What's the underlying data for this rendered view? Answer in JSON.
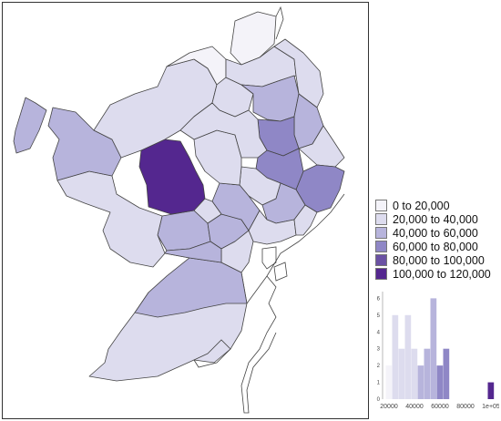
{
  "legend": {
    "items": [
      {
        "label": "0 to 20,000",
        "color": "#f4f3f9"
      },
      {
        "label": "20,000 to 40,000",
        "color": "#dddcee"
      },
      {
        "label": "40,000 to 60,000",
        "color": "#b7b4dc"
      },
      {
        "label": "60,000 to 80,000",
        "color": "#8f87c6"
      },
      {
        "label": "80,000 to 100,000",
        "color": "#6a51a3"
      },
      {
        "label": "100,000 to 120,000",
        "color": "#54278f"
      }
    ]
  },
  "histogram": {
    "x_tick_labels": [
      "20000",
      "40000",
      "60000",
      "80000",
      "1e+05"
    ],
    "y_tick_labels": [
      "0",
      "1",
      "2",
      "3",
      "4",
      "5",
      "6"
    ],
    "bins": [
      {
        "x": 20000,
        "count": 2,
        "cls": 0
      },
      {
        "x": 25000,
        "count": 5,
        "cls": 1
      },
      {
        "x": 30000,
        "count": 3,
        "cls": 1
      },
      {
        "x": 35000,
        "count": 5,
        "cls": 1
      },
      {
        "x": 40000,
        "count": 3,
        "cls": 1
      },
      {
        "x": 45000,
        "count": 2,
        "cls": 2
      },
      {
        "x": 50000,
        "count": 3,
        "cls": 2
      },
      {
        "x": 55000,
        "count": 6,
        "cls": 2
      },
      {
        "x": 60000,
        "count": 2,
        "cls": 3
      },
      {
        "x": 65000,
        "count": 3,
        "cls": 3
      },
      {
        "x": 100000,
        "count": 1,
        "cls": 5
      }
    ]
  }
}
